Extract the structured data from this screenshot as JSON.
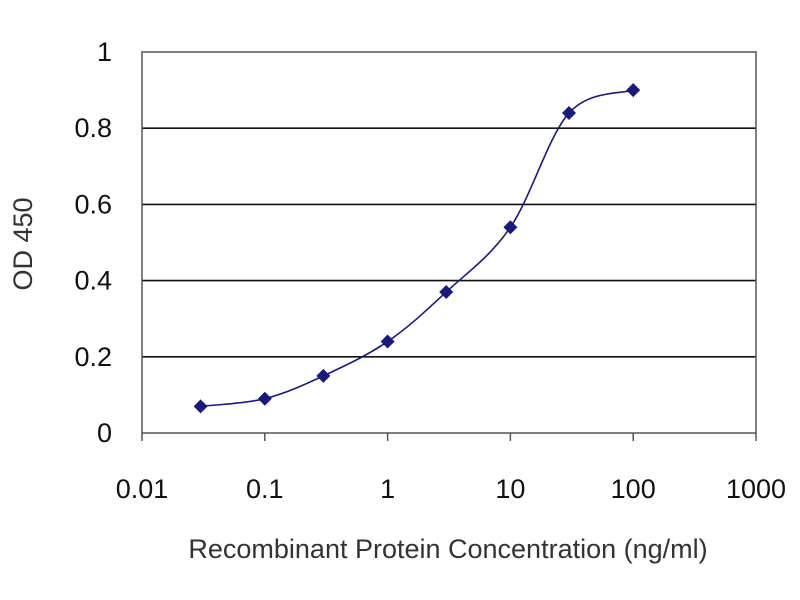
{
  "chart_data": {
    "type": "line",
    "title": "",
    "xlabel": "Recombinant Protein Concentration (ng/ml)",
    "ylabel": "OD 450",
    "x_scale": "log",
    "xlim": [
      0.01,
      1000
    ],
    "ylim": [
      0,
      1
    ],
    "x_ticks": [
      0.01,
      0.1,
      1,
      10,
      100,
      1000
    ],
    "x_tick_labels": [
      "0.01",
      "0.1",
      "1",
      "10",
      "100",
      "1000"
    ],
    "y_ticks": [
      0,
      0.2,
      0.4,
      0.6,
      0.8,
      1
    ],
    "y_tick_labels": [
      "0",
      "0.2",
      "0.4",
      "0.6",
      "0.8",
      "1"
    ],
    "grid": "horizontal",
    "legend": "none",
    "series": [
      {
        "color": "#1a1a7a",
        "marker": "diamond",
        "x": [
          0.03,
          0.1,
          0.3,
          1,
          3,
          10,
          30,
          100
        ],
        "y": [
          0.07,
          0.09,
          0.15,
          0.24,
          0.37,
          0.54,
          0.84,
          0.9
        ]
      }
    ]
  }
}
